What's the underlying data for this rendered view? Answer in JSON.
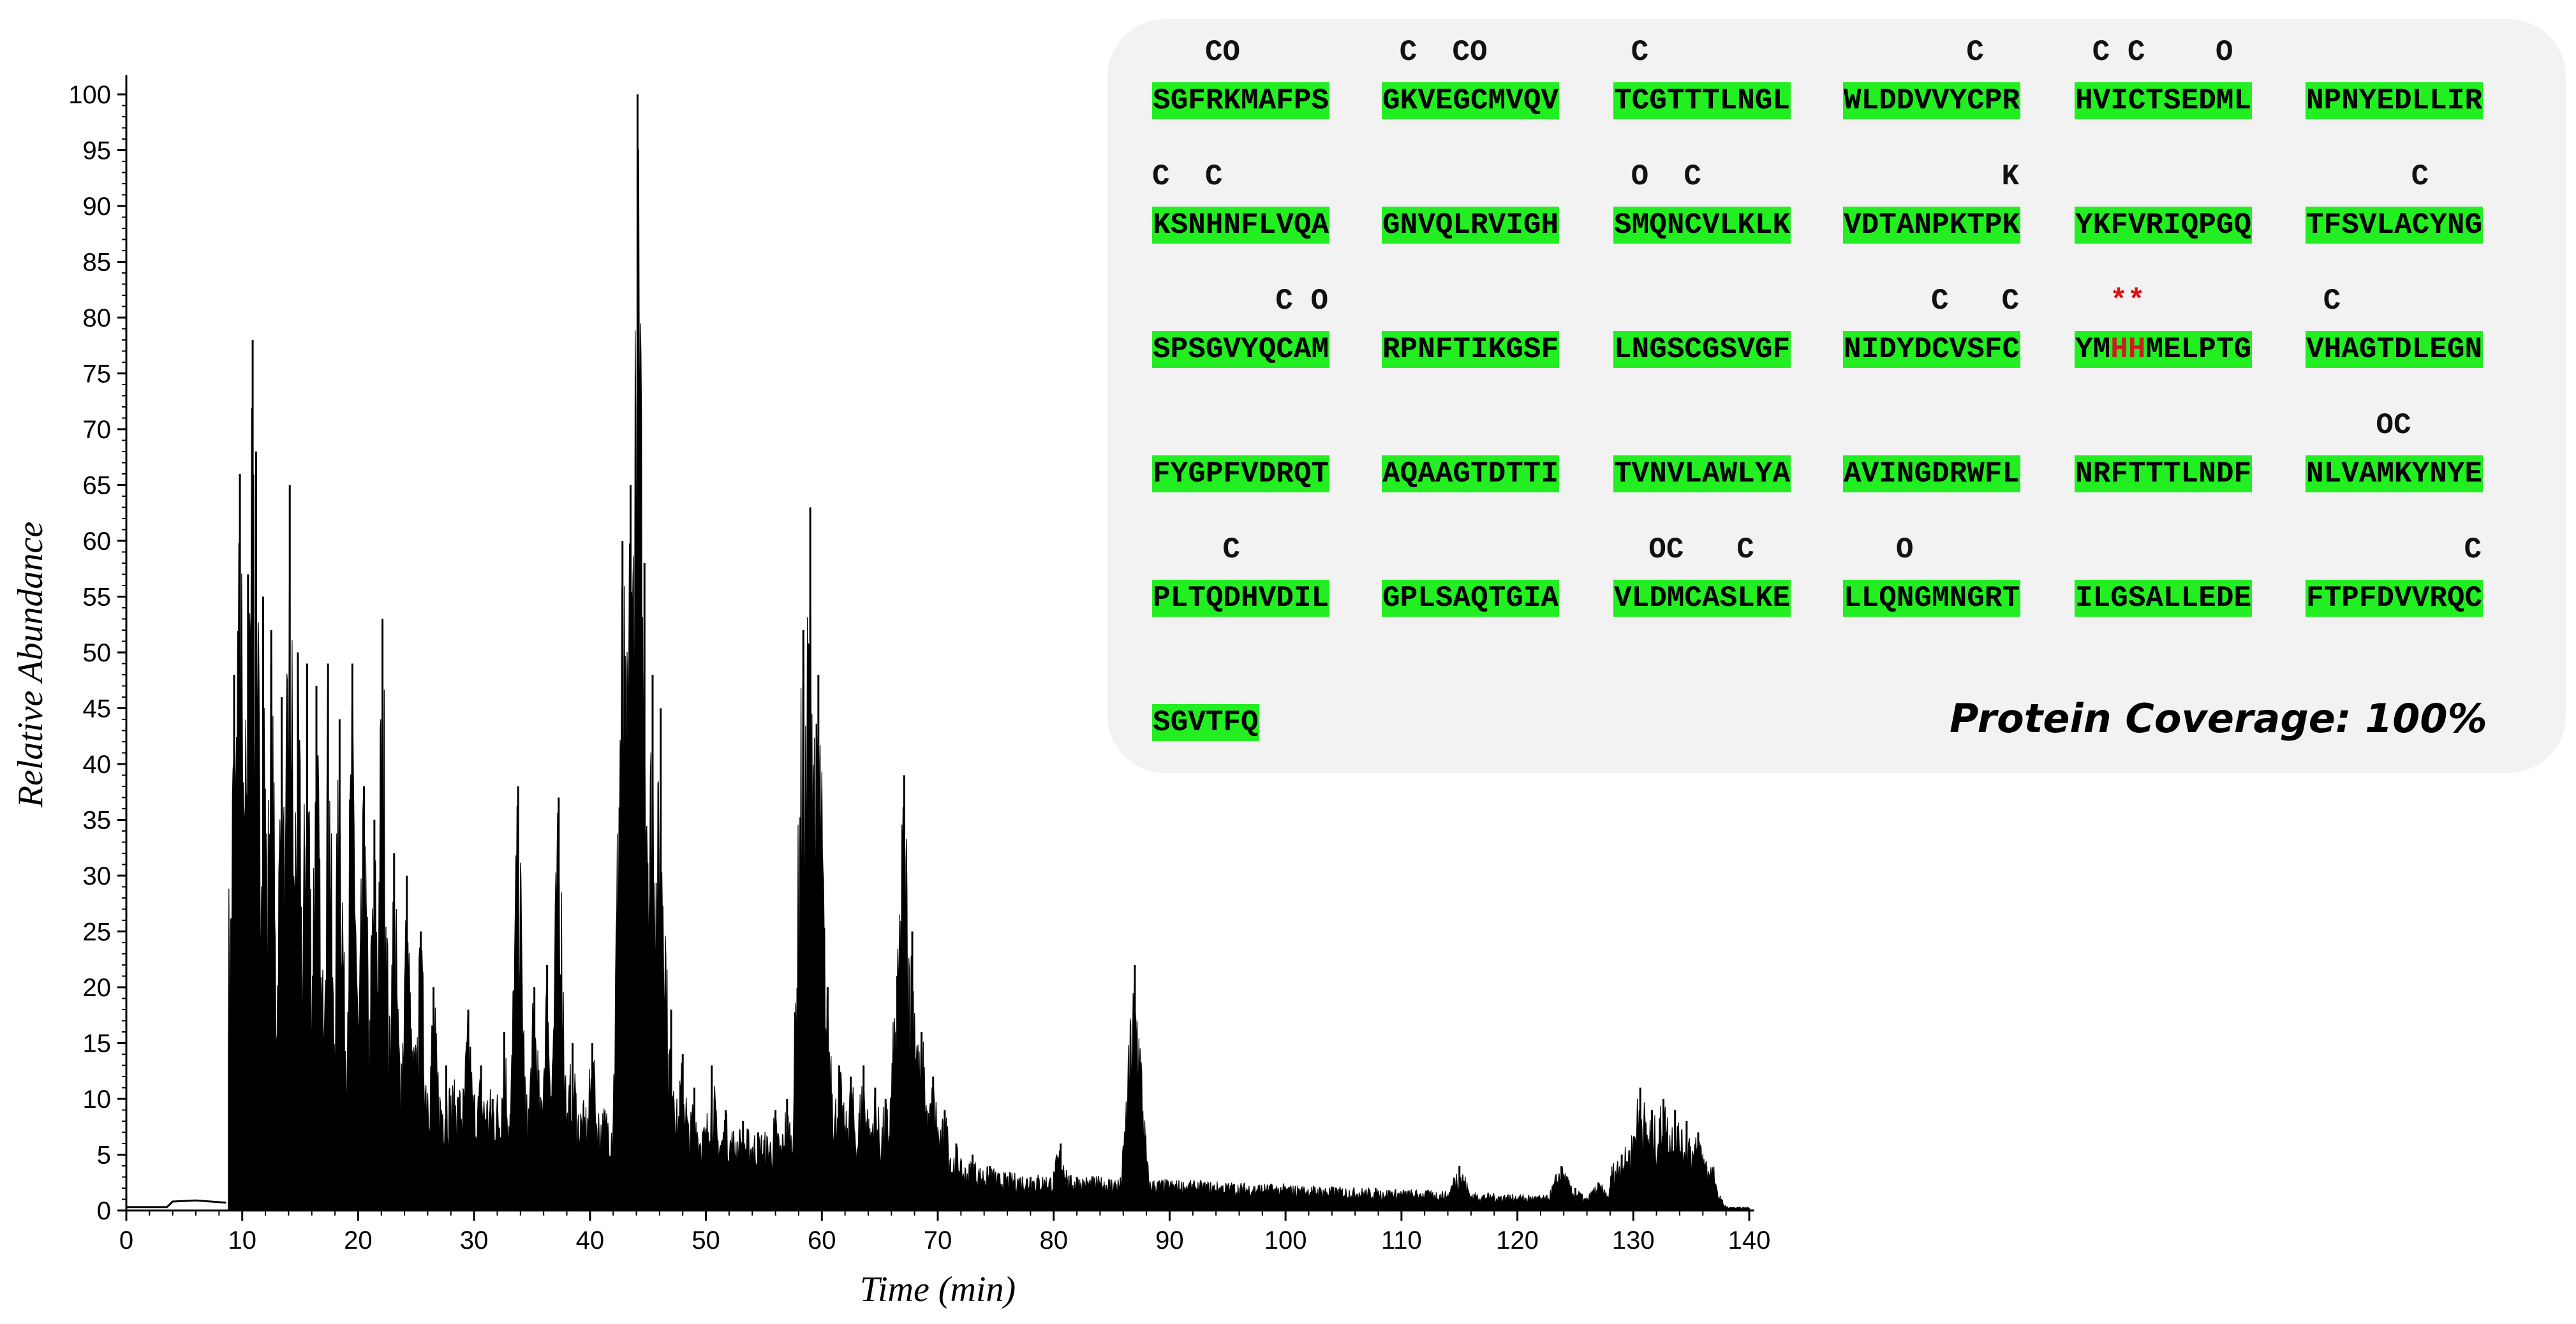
{
  "chart_data": {
    "type": "area",
    "xlabel": "Time (min)",
    "ylabel": "Relative Abundance",
    "xlim": [
      0,
      140
    ],
    "ylim": [
      0,
      100
    ],
    "xticks": [
      0,
      10,
      20,
      30,
      40,
      50,
      60,
      70,
      80,
      90,
      100,
      110,
      120,
      130,
      140
    ],
    "yticks": [
      0,
      5,
      10,
      15,
      20,
      25,
      30,
      35,
      40,
      45,
      50,
      55,
      60,
      65,
      70,
      75,
      80,
      85,
      90,
      95,
      100
    ],
    "grid": false,
    "color": "#000000",
    "baseline": [
      [
        0,
        0.3
      ],
      [
        3.5,
        0.3
      ],
      [
        4,
        0.8
      ],
      [
        6,
        0.9
      ],
      [
        8.6,
        0.7
      ]
    ],
    "peaks": [
      {
        "x": 9.3,
        "y": 48
      },
      {
        "x": 9.8,
        "y": 66
      },
      {
        "x": 10.5,
        "y": 57
      },
      {
        "x": 10.9,
        "y": 78
      },
      {
        "x": 11.2,
        "y": 68
      },
      {
        "x": 11.8,
        "y": 55
      },
      {
        "x": 12.5,
        "y": 52
      },
      {
        "x": 13.4,
        "y": 46
      },
      {
        "x": 14.1,
        "y": 65
      },
      {
        "x": 14.8,
        "y": 50
      },
      {
        "x": 15.6,
        "y": 49
      },
      {
        "x": 16.4,
        "y": 47
      },
      {
        "x": 17.4,
        "y": 49
      },
      {
        "x": 18.4,
        "y": 44
      },
      {
        "x": 19.5,
        "y": 49
      },
      {
        "x": 20.5,
        "y": 38
      },
      {
        "x": 21.4,
        "y": 35
      },
      {
        "x": 22.1,
        "y": 53
      },
      {
        "x": 23.1,
        "y": 32
      },
      {
        "x": 24.2,
        "y": 30
      },
      {
        "x": 25.4,
        "y": 25
      },
      {
        "x": 26.5,
        "y": 20
      },
      {
        "x": 27.6,
        "y": 13
      },
      {
        "x": 28.6,
        "y": 10
      },
      {
        "x": 29.5,
        "y": 18
      },
      {
        "x": 30.6,
        "y": 13
      },
      {
        "x": 31.6,
        "y": 10
      },
      {
        "x": 32.6,
        "y": 16
      },
      {
        "x": 33.8,
        "y": 38
      },
      {
        "x": 35.2,
        "y": 20
      },
      {
        "x": 36.3,
        "y": 22
      },
      {
        "x": 37.3,
        "y": 37
      },
      {
        "x": 38.5,
        "y": 15
      },
      {
        "x": 40.2,
        "y": 15
      },
      {
        "x": 41.2,
        "y": 8
      },
      {
        "x": 42.8,
        "y": 60
      },
      {
        "x": 43.5,
        "y": 65
      },
      {
        "x": 44.1,
        "y": 100
      },
      {
        "x": 44.7,
        "y": 58
      },
      {
        "x": 45.4,
        "y": 48
      },
      {
        "x": 46.1,
        "y": 45
      },
      {
        "x": 47.0,
        "y": 18
      },
      {
        "x": 48.0,
        "y": 14
      },
      {
        "x": 49.0,
        "y": 11
      },
      {
        "x": 50.5,
        "y": 13
      },
      {
        "x": 51.7,
        "y": 9
      },
      {
        "x": 53.2,
        "y": 8
      },
      {
        "x": 54.5,
        "y": 7
      },
      {
        "x": 56.0,
        "y": 9
      },
      {
        "x": 57.0,
        "y": 10
      },
      {
        "x": 58.4,
        "y": 52
      },
      {
        "x": 59.0,
        "y": 63
      },
      {
        "x": 59.7,
        "y": 48
      },
      {
        "x": 60.5,
        "y": 20
      },
      {
        "x": 61.5,
        "y": 13
      },
      {
        "x": 62.5,
        "y": 12
      },
      {
        "x": 63.6,
        "y": 13
      },
      {
        "x": 64.6,
        "y": 11
      },
      {
        "x": 65.5,
        "y": 10
      },
      {
        "x": 66.5,
        "y": 21
      },
      {
        "x": 67.1,
        "y": 39
      },
      {
        "x": 67.8,
        "y": 25
      },
      {
        "x": 68.6,
        "y": 16
      },
      {
        "x": 69.6,
        "y": 12
      },
      {
        "x": 70.6,
        "y": 9
      },
      {
        "x": 71.6,
        "y": 6
      },
      {
        "x": 73.0,
        "y": 5
      },
      {
        "x": 74.5,
        "y": 4
      },
      {
        "x": 76.0,
        "y": 3
      },
      {
        "x": 78.0,
        "y": 3
      },
      {
        "x": 80.6,
        "y": 6
      },
      {
        "x": 82.0,
        "y": 3
      },
      {
        "x": 84.0,
        "y": 2.5
      },
      {
        "x": 86.0,
        "y": 2
      },
      {
        "x": 87.0,
        "y": 22
      },
      {
        "x": 88.0,
        "y": 3
      },
      {
        "x": 90.0,
        "y": 1.8
      },
      {
        "x": 93.0,
        "y": 2
      },
      {
        "x": 95.5,
        "y": 2.3
      },
      {
        "x": 98.0,
        "y": 1.5
      },
      {
        "x": 103.0,
        "y": 1.2
      },
      {
        "x": 108.0,
        "y": 1.2
      },
      {
        "x": 112.0,
        "y": 1
      },
      {
        "x": 115.0,
        "y": 4
      },
      {
        "x": 117.0,
        "y": 1.2
      },
      {
        "x": 121.0,
        "y": 1.1
      },
      {
        "x": 123.8,
        "y": 4
      },
      {
        "x": 125.0,
        "y": 2
      },
      {
        "x": 127.0,
        "y": 2.5
      },
      {
        "x": 129.0,
        "y": 5
      },
      {
        "x": 130.6,
        "y": 11
      },
      {
        "x": 131.6,
        "y": 9
      },
      {
        "x": 132.6,
        "y": 10
      },
      {
        "x": 133.6,
        "y": 9
      },
      {
        "x": 134.6,
        "y": 8
      },
      {
        "x": 135.6,
        "y": 7
      },
      {
        "x": 136.3,
        "y": 4
      },
      {
        "x": 137.0,
        "y": 0.8
      },
      {
        "x": 138.5,
        "y": 0.3
      },
      {
        "x": 140.0,
        "y": 0.2
      }
    ],
    "annotations": [
      "Protein Coverage: 100%"
    ]
  },
  "coverage": {
    "label": "Protein Coverage: 100%",
    "colors": {
      "covered": "#22ee22",
      "panel": "#f2f2f2",
      "marked_residue": "#c8201e",
      "marker": "#e01010"
    },
    "segments": [
      {
        "seq": "SGFRKMAFPS",
        "mods": "   CO     "
      },
      {
        "seq": "GKVEGCMVQV",
        "mods": " C  CO    "
      },
      {
        "seq": "TCGTTTLNGL",
        "mods": " C        "
      },
      {
        "seq": "WLDDVVYCPR",
        "mods": "       C  "
      },
      {
        "seq": "HVICTSEDML",
        "mods": " C C    O "
      },
      {
        "seq": "NPNYEDLLIR",
        "mods": "          "
      },
      {
        "seq": "KSNHNFLVQA",
        "mods": "C  C      "
      },
      {
        "seq": "GNVQLRVIGH",
        "mods": "          "
      },
      {
        "seq": "SMQNCVLKLK",
        "mods": " O  C     "
      },
      {
        "seq": "VDTANPKTPK",
        "mods": "         K"
      },
      {
        "seq": "YKFVRIQPGQ",
        "mods": "          "
      },
      {
        "seq": "TFSVLACYNG",
        "mods": "      C   "
      },
      {
        "seq": "SPSGVYQCAM",
        "mods": "       C O"
      },
      {
        "seq": "RPNFTIKGSF",
        "mods": "          "
      },
      {
        "seq": "LNGSCGSVGF",
        "mods": "          "
      },
      {
        "seq": "NIDYDCVSFC",
        "mods": "     C   C"
      },
      {
        "seq": "YMHHMELPTG",
        "mods": "          ",
        "marks": "  **      ",
        "highlight": [
          2,
          3
        ]
      },
      {
        "seq": "VHAGTDLEGN",
        "mods": " C        "
      },
      {
        "seq": "FYGPFVDRQT",
        "mods": "          "
      },
      {
        "seq": "AQAAGTDTTI",
        "mods": "          "
      },
      {
        "seq": "TVNVLAWLYA",
        "mods": "          "
      },
      {
        "seq": "AVINGDRWFL",
        "mods": "          "
      },
      {
        "seq": "NRFTTTLNDF",
        "mods": "          "
      },
      {
        "seq": "NLVAMKYNYE",
        "mods": "    OC    "
      },
      {
        "seq": "PLTQDHVDIL",
        "mods": "    C     "
      },
      {
        "seq": "GPLSAQTGIA",
        "mods": "          "
      },
      {
        "seq": "VLDMCASLKE",
        "mods": "  OC   C  "
      },
      {
        "seq": "LLQNGMNGRT",
        "mods": "   O      "
      },
      {
        "seq": "ILGSALLEDE",
        "mods": "          "
      },
      {
        "seq": "FTPFDVVRQC",
        "mods": "         C"
      },
      {
        "seq": "SGVTFQ",
        "mods": "      "
      }
    ]
  }
}
